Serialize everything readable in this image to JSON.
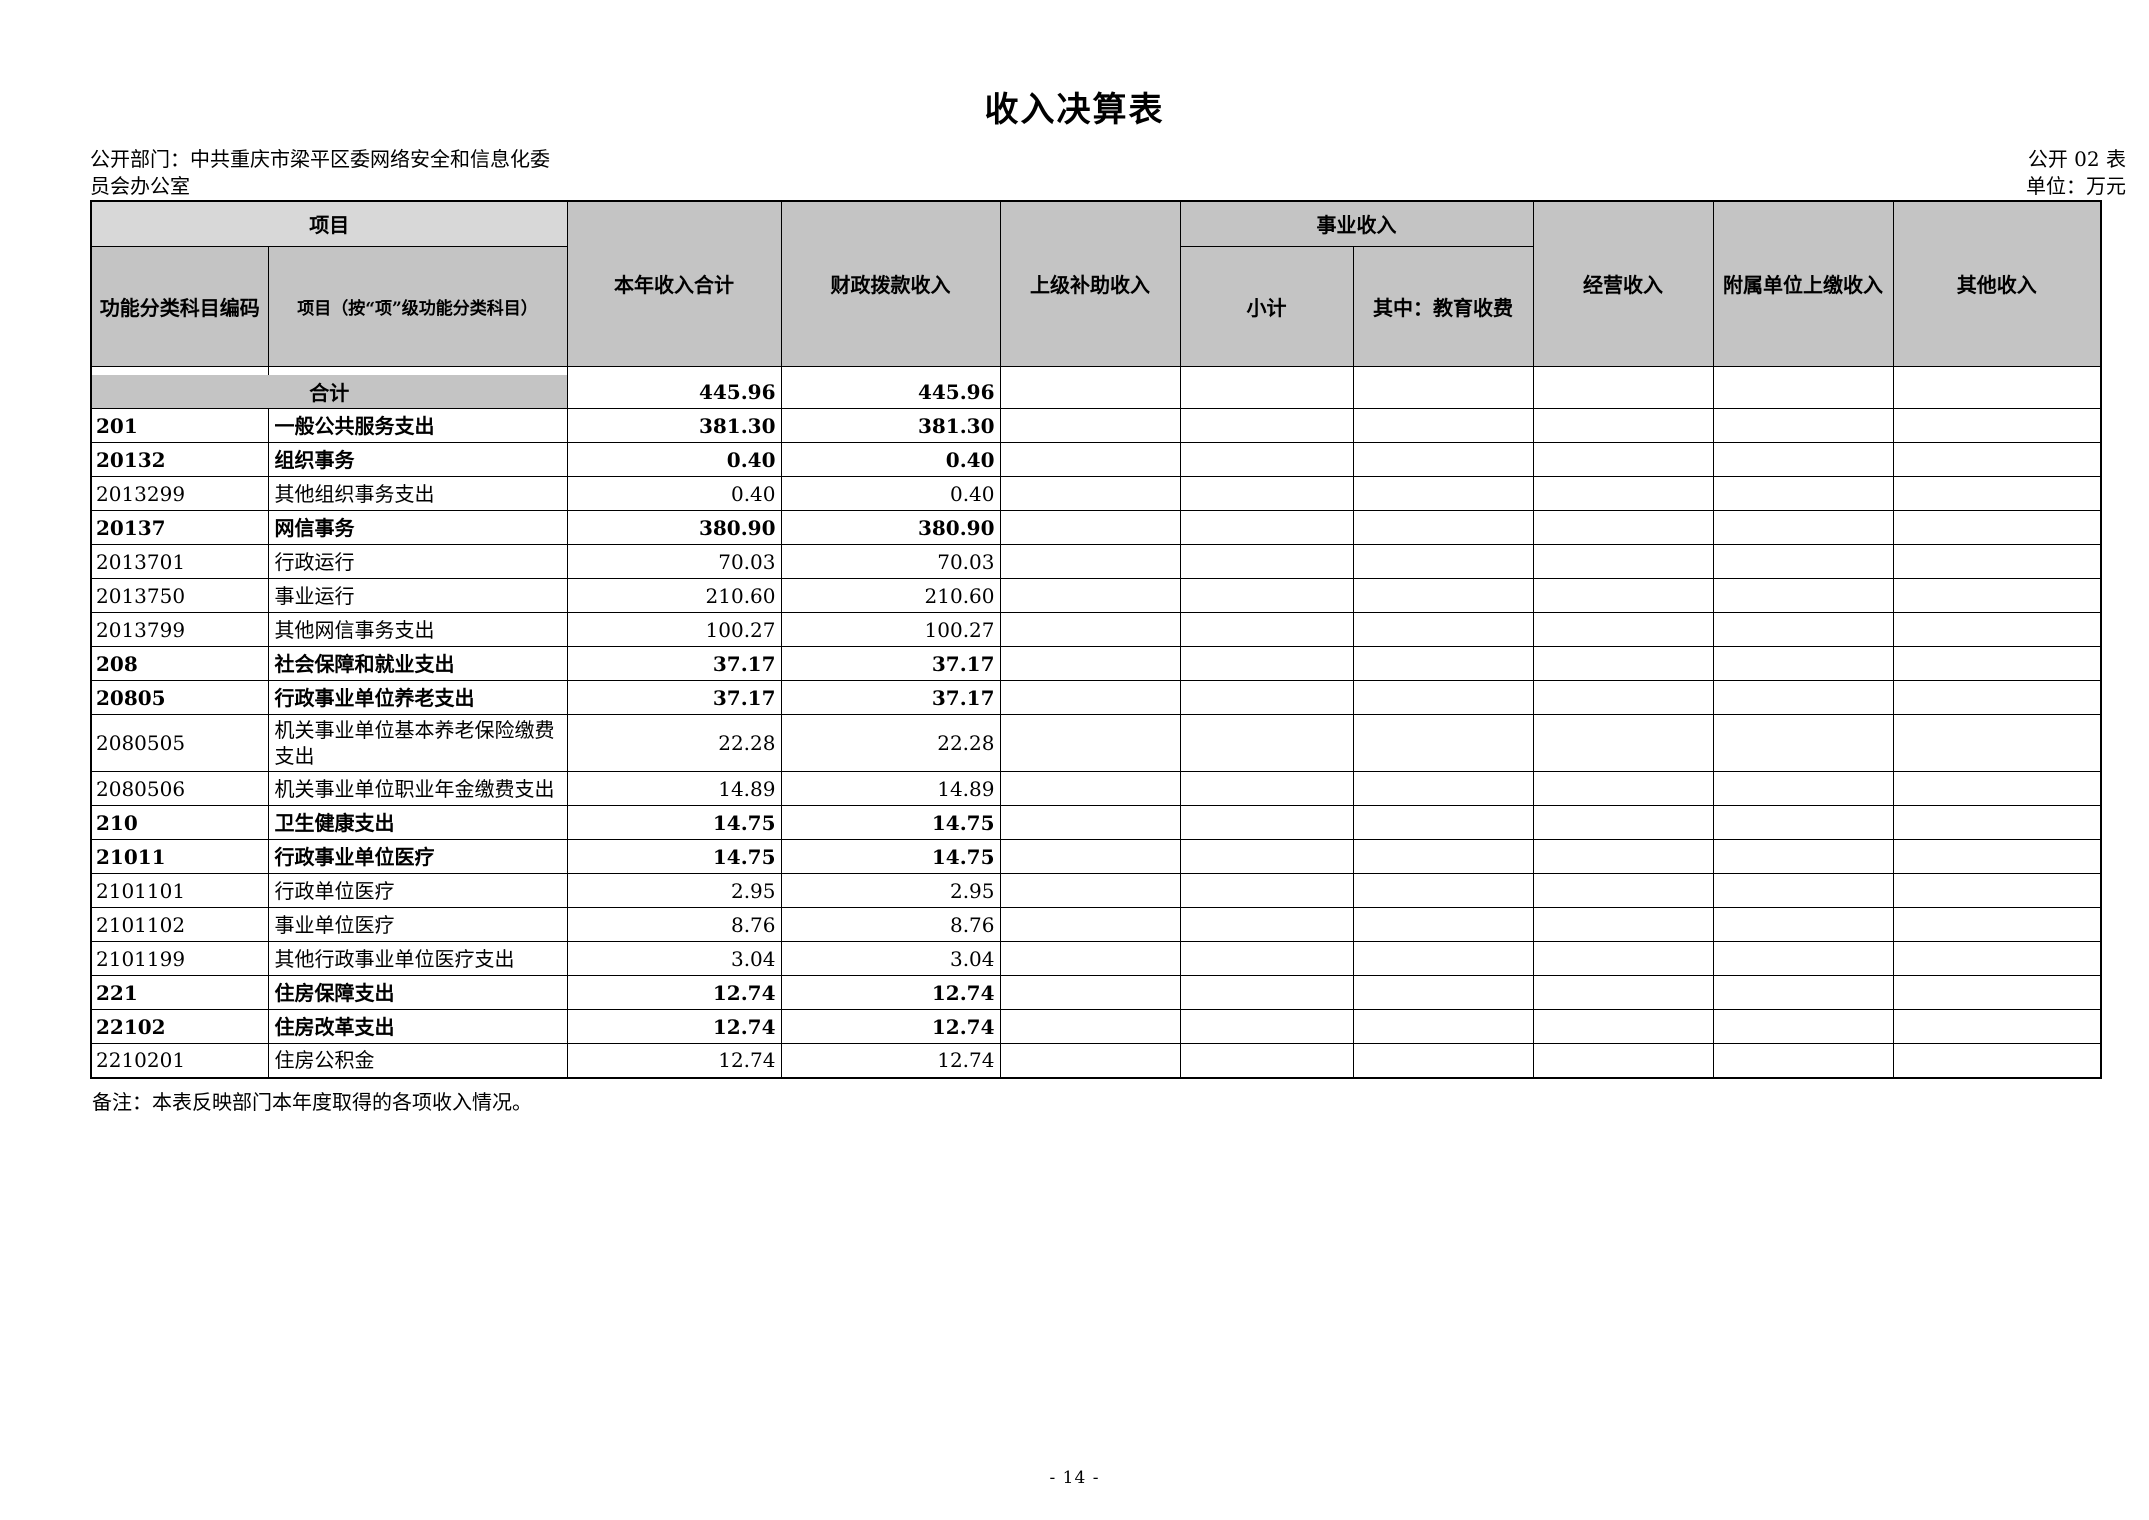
{
  "page": {
    "title": "收入决算表",
    "dept_label": "公开部门：中共重庆市梁平区委网络安全和信息化委员会办公室",
    "table_code": "公开 02 表",
    "unit_label": "单位：万元",
    "footnote": "备注：本表反映部门本年度取得的各项收入情况。",
    "page_number": "- 14 -"
  },
  "colors": {
    "header_bg": "#c4c4c4",
    "group_bg": "#d8d8d8",
    "border": "#000000"
  },
  "table": {
    "header": {
      "group_item": "项目",
      "col_code": "功能分类科目编码",
      "col_item": "项目（按“项”级功能分类科目）",
      "col_total": "本年收入合计",
      "col_fiscal": "财政拨款收入",
      "col_superior": "上级补助收入",
      "group_business": "事业收入",
      "col_subtotal": "小计",
      "col_education": "其中：教育收费",
      "col_operating": "经营收入",
      "col_affiliated": "附属单位上缴收入",
      "col_other": "其他收入"
    },
    "rows": [
      {
        "code": "",
        "item": "合计",
        "total": "445.96",
        "fiscal": "445.96",
        "superior": "",
        "subtotal": "",
        "education": "",
        "operating": "",
        "affiliated": "",
        "other": "",
        "bold": true,
        "is_total": true
      },
      {
        "code": "201",
        "item": "一般公共服务支出",
        "total": "381.30",
        "fiscal": "381.30",
        "superior": "",
        "subtotal": "",
        "education": "",
        "operating": "",
        "affiliated": "",
        "other": "",
        "bold": true,
        "is_total": false
      },
      {
        "code": "20132",
        "item": "组织事务",
        "total": "0.40",
        "fiscal": "0.40",
        "superior": "",
        "subtotal": "",
        "education": "",
        "operating": "",
        "affiliated": "",
        "other": "",
        "bold": true,
        "is_total": false
      },
      {
        "code": "2013299",
        "item": "其他组织事务支出",
        "total": "0.40",
        "fiscal": "0.40",
        "superior": "",
        "subtotal": "",
        "education": "",
        "operating": "",
        "affiliated": "",
        "other": "",
        "bold": false,
        "is_total": false
      },
      {
        "code": "20137",
        "item": "网信事务",
        "total": "380.90",
        "fiscal": "380.90",
        "superior": "",
        "subtotal": "",
        "education": "",
        "operating": "",
        "affiliated": "",
        "other": "",
        "bold": true,
        "is_total": false
      },
      {
        "code": "2013701",
        "item": "行政运行",
        "total": "70.03",
        "fiscal": "70.03",
        "superior": "",
        "subtotal": "",
        "education": "",
        "operating": "",
        "affiliated": "",
        "other": "",
        "bold": false,
        "is_total": false
      },
      {
        "code": "2013750",
        "item": "事业运行",
        "total": "210.60",
        "fiscal": "210.60",
        "superior": "",
        "subtotal": "",
        "education": "",
        "operating": "",
        "affiliated": "",
        "other": "",
        "bold": false,
        "is_total": false
      },
      {
        "code": "2013799",
        "item": "其他网信事务支出",
        "total": "100.27",
        "fiscal": "100.27",
        "superior": "",
        "subtotal": "",
        "education": "",
        "operating": "",
        "affiliated": "",
        "other": "",
        "bold": false,
        "is_total": false
      },
      {
        "code": "208",
        "item": "社会保障和就业支出",
        "total": "37.17",
        "fiscal": "37.17",
        "superior": "",
        "subtotal": "",
        "education": "",
        "operating": "",
        "affiliated": "",
        "other": "",
        "bold": true,
        "is_total": false
      },
      {
        "code": "20805",
        "item": "行政事业单位养老支出",
        "total": "37.17",
        "fiscal": "37.17",
        "superior": "",
        "subtotal": "",
        "education": "",
        "operating": "",
        "affiliated": "",
        "other": "",
        "bold": true,
        "is_total": false
      },
      {
        "code": "2080505",
        "item": "机关事业单位基本养老保险缴费支出",
        "total": "22.28",
        "fiscal": "22.28",
        "superior": "",
        "subtotal": "",
        "education": "",
        "operating": "",
        "affiliated": "",
        "other": "",
        "bold": false,
        "is_total": false
      },
      {
        "code": "2080506",
        "item": "机关事业单位职业年金缴费支出",
        "total": "14.89",
        "fiscal": "14.89",
        "superior": "",
        "subtotal": "",
        "education": "",
        "operating": "",
        "affiliated": "",
        "other": "",
        "bold": false,
        "is_total": false
      },
      {
        "code": "210",
        "item": "卫生健康支出",
        "total": "14.75",
        "fiscal": "14.75",
        "superior": "",
        "subtotal": "",
        "education": "",
        "operating": "",
        "affiliated": "",
        "other": "",
        "bold": true,
        "is_total": false
      },
      {
        "code": "21011",
        "item": "行政事业单位医疗",
        "total": "14.75",
        "fiscal": "14.75",
        "superior": "",
        "subtotal": "",
        "education": "",
        "operating": "",
        "affiliated": "",
        "other": "",
        "bold": true,
        "is_total": false
      },
      {
        "code": "2101101",
        "item": "行政单位医疗",
        "total": "2.95",
        "fiscal": "2.95",
        "superior": "",
        "subtotal": "",
        "education": "",
        "operating": "",
        "affiliated": "",
        "other": "",
        "bold": false,
        "is_total": false
      },
      {
        "code": "2101102",
        "item": "事业单位医疗",
        "total": "8.76",
        "fiscal": "8.76",
        "superior": "",
        "subtotal": "",
        "education": "",
        "operating": "",
        "affiliated": "",
        "other": "",
        "bold": false,
        "is_total": false
      },
      {
        "code": "2101199",
        "item": "其他行政事业单位医疗支出",
        "total": "3.04",
        "fiscal": "3.04",
        "superior": "",
        "subtotal": "",
        "education": "",
        "operating": "",
        "affiliated": "",
        "other": "",
        "bold": false,
        "is_total": false
      },
      {
        "code": "221",
        "item": "住房保障支出",
        "total": "12.74",
        "fiscal": "12.74",
        "superior": "",
        "subtotal": "",
        "education": "",
        "operating": "",
        "affiliated": "",
        "other": "",
        "bold": true,
        "is_total": false
      },
      {
        "code": "22102",
        "item": "住房改革支出",
        "total": "12.74",
        "fiscal": "12.74",
        "superior": "",
        "subtotal": "",
        "education": "",
        "operating": "",
        "affiliated": "",
        "other": "",
        "bold": true,
        "is_total": false
      },
      {
        "code": "2210201",
        "item": "住房公积金",
        "total": "12.74",
        "fiscal": "12.74",
        "superior": "",
        "subtotal": "",
        "education": "",
        "operating": "",
        "affiliated": "",
        "other": "",
        "bold": false,
        "is_total": false
      }
    ]
  }
}
